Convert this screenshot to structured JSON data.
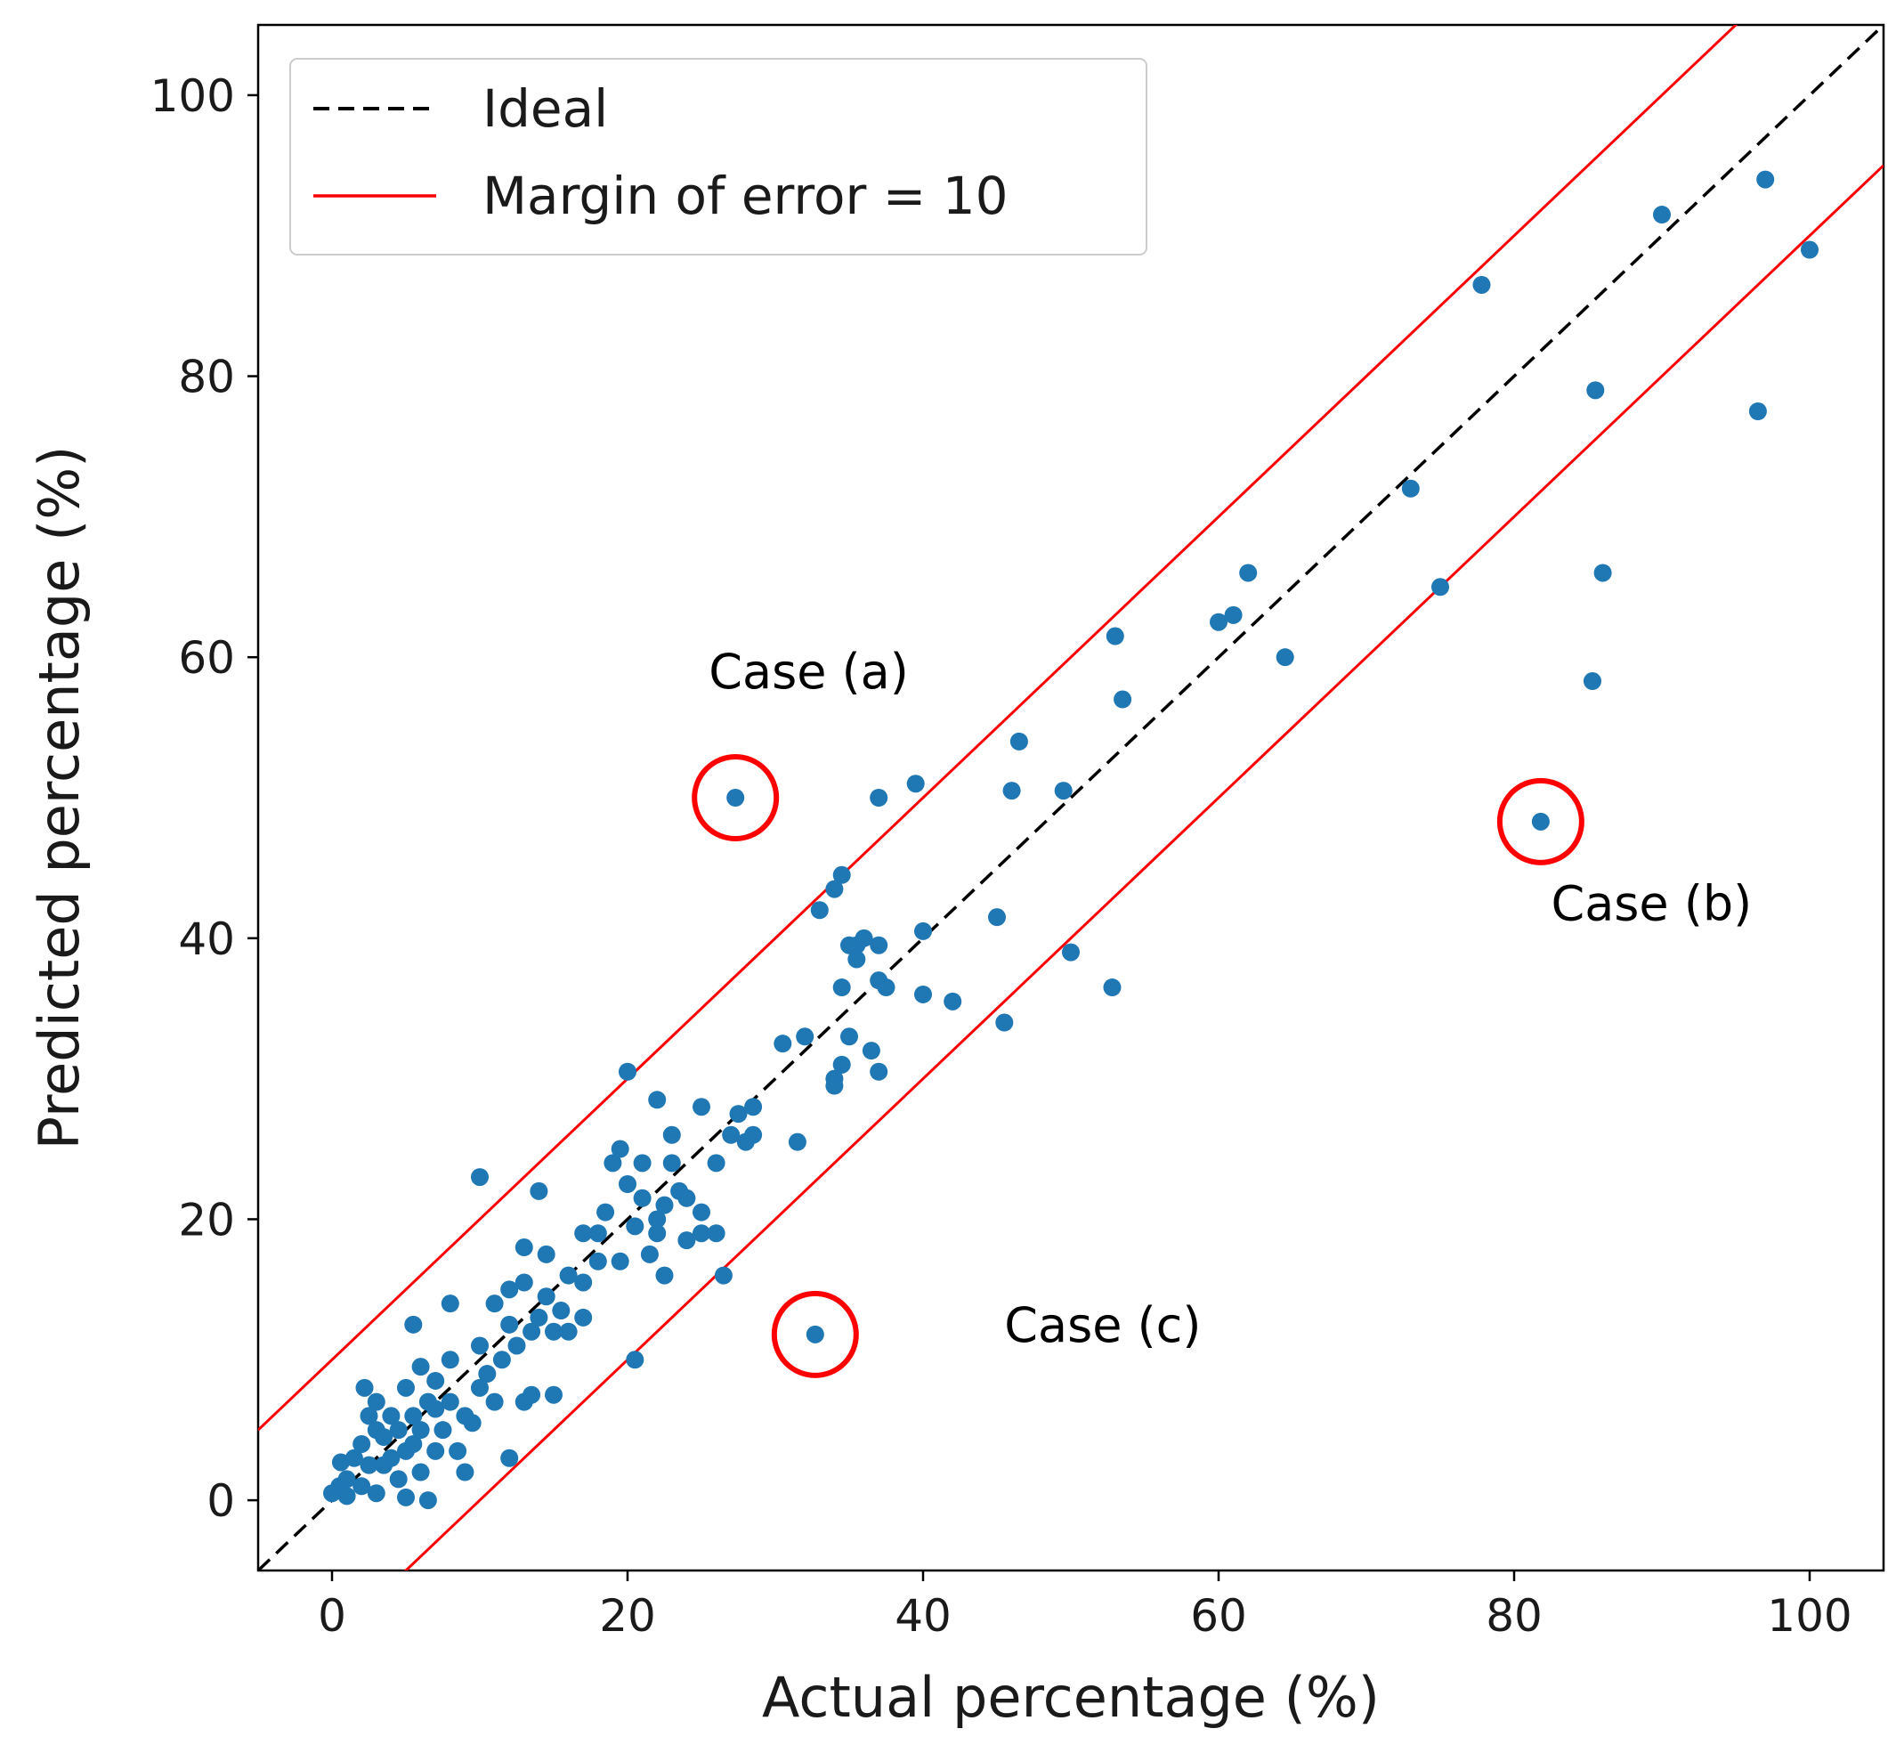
{
  "chart_data": {
    "type": "scatter",
    "xlabel": "Actual percentage (%)",
    "ylabel": "Predicted percentage (%)",
    "xlim": [
      -5,
      105
    ],
    "ylim": [
      -5,
      105
    ],
    "xticks": [
      0,
      20,
      40,
      60,
      80,
      100
    ],
    "yticks": [
      0,
      20,
      40,
      60,
      80,
      100
    ],
    "grid": false,
    "legend": {
      "position": "top-left",
      "entries": [
        {
          "label": "Ideal",
          "style": "dashed",
          "color": "#000000"
        },
        {
          "label": "Margin of error = 10",
          "style": "solid",
          "color": "#ff0000"
        }
      ]
    },
    "ideal_line": {
      "slope": 1,
      "intercept": 0
    },
    "margin_lines": [
      {
        "slope": 1,
        "intercept": 10
      },
      {
        "slope": 1,
        "intercept": -10
      }
    ],
    "series": [
      {
        "name": "Samples",
        "color": "#1f77b4",
        "points": [
          [
            0,
            0.5
          ],
          [
            0.5,
            1
          ],
          [
            0.6,
            2.7
          ],
          [
            1,
            1.5
          ],
          [
            1,
            0.3
          ],
          [
            1.5,
            3
          ],
          [
            2,
            1
          ],
          [
            2,
            4
          ],
          [
            2.2,
            8
          ],
          [
            2.5,
            6
          ],
          [
            2.5,
            2.5
          ],
          [
            3,
            0.5
          ],
          [
            3,
            5
          ],
          [
            3,
            7
          ],
          [
            3.5,
            2.5
          ],
          [
            3.5,
            4.5
          ],
          [
            4,
            3
          ],
          [
            4,
            6
          ],
          [
            4.5,
            1.5
          ],
          [
            4.5,
            5
          ],
          [
            5,
            3.5
          ],
          [
            5,
            8
          ],
          [
            5,
            0.2
          ],
          [
            5.5,
            12.5
          ],
          [
            5.5,
            6
          ],
          [
            5.5,
            4
          ],
          [
            6,
            5
          ],
          [
            6,
            9.5
          ],
          [
            6,
            2
          ],
          [
            6.5,
            7
          ],
          [
            6.5,
            0
          ],
          [
            7,
            6.5
          ],
          [
            7,
            3.5
          ],
          [
            7,
            8.5
          ],
          [
            7.5,
            5
          ],
          [
            8,
            14
          ],
          [
            8,
            7
          ],
          [
            8,
            10
          ],
          [
            8.5,
            3.5
          ],
          [
            9,
            6
          ],
          [
            9,
            2
          ],
          [
            9.5,
            5.5
          ],
          [
            10,
            23
          ],
          [
            10,
            8
          ],
          [
            10,
            11
          ],
          [
            10.5,
            9
          ],
          [
            11,
            7
          ],
          [
            11,
            14
          ],
          [
            11.5,
            10
          ],
          [
            12,
            15
          ],
          [
            12,
            12.5
          ],
          [
            12,
            3
          ],
          [
            12.5,
            11
          ],
          [
            13,
            18
          ],
          [
            13,
            15.5
          ],
          [
            13,
            7
          ],
          [
            13.5,
            12
          ],
          [
            13.5,
            7.5
          ],
          [
            14,
            22
          ],
          [
            14,
            13
          ],
          [
            14.5,
            14.5
          ],
          [
            14.5,
            17.5
          ],
          [
            15,
            12
          ],
          [
            15,
            7.5
          ],
          [
            15.5,
            13.5
          ],
          [
            16,
            16
          ],
          [
            16,
            12
          ],
          [
            17,
            19
          ],
          [
            17,
            15.5
          ],
          [
            17,
            13
          ],
          [
            18,
            19
          ],
          [
            18,
            17
          ],
          [
            18.5,
            20.5
          ],
          [
            19,
            24
          ],
          [
            19.5,
            25
          ],
          [
            19.5,
            17
          ],
          [
            20,
            30.5
          ],
          [
            20,
            22.5
          ],
          [
            20.5,
            19.5
          ],
          [
            20.5,
            10
          ],
          [
            21,
            24
          ],
          [
            21,
            21.5
          ],
          [
            21.5,
            17.5
          ],
          [
            22,
            28.5
          ],
          [
            22,
            20
          ],
          [
            22,
            19
          ],
          [
            22.5,
            21
          ],
          [
            22.5,
            16
          ],
          [
            23,
            24
          ],
          [
            23,
            26
          ],
          [
            23.5,
            22
          ],
          [
            24,
            18.5
          ],
          [
            24,
            21.5
          ],
          [
            25,
            20.5
          ],
          [
            25,
            28
          ],
          [
            25,
            19
          ],
          [
            26,
            24
          ],
          [
            26,
            19
          ],
          [
            26.5,
            16
          ],
          [
            27,
            26
          ],
          [
            27.5,
            27.5
          ],
          [
            28,
            25.5
          ],
          [
            28.5,
            28
          ],
          [
            28.5,
            26
          ],
          [
            27.3,
            50
          ],
          [
            30.5,
            32.5
          ],
          [
            31.5,
            25.5
          ],
          [
            32,
            33
          ],
          [
            32.7,
            11.8
          ],
          [
            33,
            42
          ],
          [
            34,
            43.5
          ],
          [
            34,
            30
          ],
          [
            34,
            29.5
          ],
          [
            34.5,
            36.5
          ],
          [
            34.5,
            44.5
          ],
          [
            34.5,
            31
          ],
          [
            35,
            39.5
          ],
          [
            35,
            33
          ],
          [
            35.5,
            38.5
          ],
          [
            35.5,
            39.5
          ],
          [
            36,
            40
          ],
          [
            36.5,
            32
          ],
          [
            37,
            50
          ],
          [
            37,
            39.5
          ],
          [
            37,
            37
          ],
          [
            37,
            30.5
          ],
          [
            37.5,
            36.5
          ],
          [
            39.5,
            51
          ],
          [
            40,
            36
          ],
          [
            40,
            40.5
          ],
          [
            42,
            35.5
          ],
          [
            45,
            41.5
          ],
          [
            45.5,
            34
          ],
          [
            46,
            50.5
          ],
          [
            46.5,
            54
          ],
          [
            49.5,
            50.5
          ],
          [
            50,
            39
          ],
          [
            52.8,
            36.5
          ],
          [
            53,
            61.5
          ],
          [
            53.5,
            57
          ],
          [
            60,
            62.5
          ],
          [
            61,
            63
          ],
          [
            62,
            66
          ],
          [
            64.5,
            60
          ],
          [
            73,
            72
          ],
          [
            75,
            65
          ],
          [
            77.8,
            86.5
          ],
          [
            81.8,
            48.3
          ],
          [
            85.3,
            58.3
          ],
          [
            85.5,
            79
          ],
          [
            86,
            66
          ],
          [
            90,
            91.5
          ],
          [
            96.5,
            77.5
          ],
          [
            97,
            94
          ],
          [
            100,
            89
          ]
        ]
      }
    ],
    "annotations": [
      {
        "label": "Case (a)",
        "point": [
          27.3,
          50
        ],
        "label_at": [
          25.5,
          57.8
        ]
      },
      {
        "label": "Case (b)",
        "point": [
          81.8,
          48.3
        ],
        "label_at": [
          82.5,
          41.3
        ]
      },
      {
        "label": "Case (c)",
        "point": [
          32.7,
          11.8
        ],
        "label_at": [
          45.5,
          11.3
        ]
      }
    ]
  }
}
